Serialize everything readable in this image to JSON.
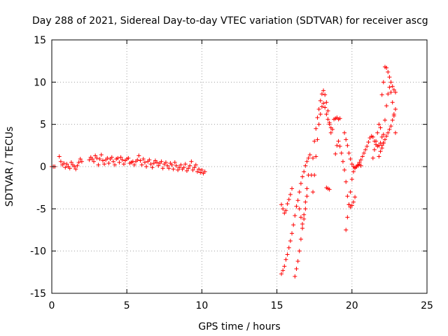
{
  "chart_data": {
    "type": "scatter",
    "title": "Day 288 of 2021, Sidereal Day-to-day VTEC variation (SDTVAR) for receiver ascg",
    "xlabel": "GPS time / hours",
    "ylabel": "SDTVAR / TECUs",
    "xlim": [
      0,
      25
    ],
    "ylim": [
      -15,
      15
    ],
    "xticks": [
      0,
      5,
      10,
      15,
      20,
      25
    ],
    "yticks": [
      -15,
      -10,
      -5,
      0,
      5,
      10,
      15
    ],
    "grid": true,
    "marker": "+",
    "series_color": "#ff0000",
    "series": [
      {
        "name": "SDTVAR",
        "x": [
          0.0,
          0.1,
          0.2,
          0.5,
          0.6,
          0.7,
          0.8,
          0.9,
          1.0,
          1.1,
          1.2,
          1.3,
          1.4,
          1.5,
          1.6,
          1.7,
          1.8,
          1.9,
          2.0,
          2.5,
          2.6,
          2.7,
          2.8,
          2.9,
          3.0,
          3.1,
          3.2,
          3.3,
          3.4,
          3.5,
          3.6,
          3.7,
          3.8,
          3.9,
          4.0,
          4.1,
          4.2,
          4.3,
          4.4,
          4.5,
          4.6,
          4.7,
          4.8,
          4.9,
          5.0,
          5.1,
          5.2,
          5.3,
          5.4,
          5.5,
          5.6,
          5.7,
          5.8,
          5.9,
          6.0,
          6.1,
          6.2,
          6.3,
          6.4,
          6.5,
          6.6,
          6.7,
          6.8,
          6.9,
          7.0,
          7.1,
          7.2,
          7.3,
          7.4,
          7.5,
          7.6,
          7.7,
          7.8,
          7.9,
          8.0,
          8.1,
          8.2,
          8.3,
          8.4,
          8.5,
          8.6,
          8.7,
          8.8,
          8.9,
          9.0,
          9.1,
          9.2,
          9.3,
          9.4,
          9.5,
          9.6,
          9.7,
          9.8,
          9.9,
          10.0,
          10.1,
          10.2,
          15.3,
          15.4,
          15.5,
          15.6,
          15.7,
          15.8,
          15.9,
          16.0,
          16.1,
          16.2,
          16.3,
          15.3,
          15.4,
          15.5,
          15.6,
          15.7,
          15.8,
          15.9,
          16.0,
          16.2,
          16.3,
          16.4,
          16.5,
          16.6,
          16.7,
          16.8,
          16.9,
          17.0,
          17.1,
          16.5,
          16.6,
          16.7,
          16.8,
          16.9,
          17.0,
          17.1,
          17.2,
          16.4,
          16.5,
          16.6,
          16.7,
          16.8,
          16.9,
          17.0,
          17.3,
          17.4,
          17.5,
          17.6,
          17.7,
          17.8,
          17.9,
          18.0,
          18.1,
          18.2,
          18.3,
          18.4,
          18.5,
          18.6,
          17.4,
          17.5,
          17.6,
          17.7,
          17.8,
          17.9,
          18.0,
          18.1,
          18.2,
          18.3,
          18.4,
          18.5,
          18.6,
          18.7,
          18.3,
          18.4,
          18.5,
          18.8,
          18.9,
          19.0,
          19.1,
          19.2,
          18.9,
          19.0,
          19.1,
          19.2,
          19.3,
          19.4,
          19.5,
          19.6,
          19.7,
          19.8,
          19.9,
          20.0,
          20.1,
          20.2,
          19.6,
          19.7,
          19.8,
          19.9,
          20.0,
          20.1,
          20.2,
          20.3,
          20.4,
          19.5,
          19.6,
          19.7,
          19.8,
          19.9,
          20.0,
          20.1,
          20.2,
          20.3,
          20.4,
          20.5,
          20.6,
          20.3,
          20.4,
          20.5,
          20.6,
          20.7,
          20.8,
          20.9,
          21.0,
          21.1,
          21.2,
          21.3,
          21.4,
          21.5,
          21.6,
          21.7,
          21.8,
          21.9,
          21.4,
          21.5,
          21.6,
          21.7,
          21.8,
          21.9,
          22.0,
          22.1,
          22.0,
          22.1,
          22.2,
          22.3,
          22.4,
          22.5,
          22.6,
          22.7,
          22.8,
          22.9,
          22.0,
          22.1,
          22.2,
          22.3,
          22.4,
          22.5,
          22.6,
          22.7,
          22.8,
          22.9,
          21.8,
          21.9,
          22.0,
          22.1,
          22.2,
          22.3,
          22.4,
          22.5,
          22.6,
          22.7,
          22.8,
          22.9
        ],
        "y": [
          0.0,
          0.0,
          0.0,
          1.2,
          0.6,
          0.2,
          0.4,
          -0.1,
          0.3,
          0.0,
          -0.2,
          0.5,
          0.2,
          0.0,
          -0.3,
          0.1,
          0.5,
          0.9,
          0.6,
          0.8,
          1.1,
          0.9,
          0.6,
          1.3,
          1.0,
          0.2,
          0.9,
          1.4,
          0.7,
          0.3,
          0.8,
          1.0,
          0.4,
          0.9,
          1.1,
          0.6,
          0.2,
          0.9,
          1.0,
          0.5,
          1.1,
          0.8,
          0.3,
          0.7,
          0.9,
          1.0,
          0.4,
          0.5,
          0.6,
          0.2,
          0.6,
          0.8,
          1.3,
          0.7,
          0.2,
          0.9,
          0.5,
          0.0,
          0.6,
          0.8,
          0.3,
          -0.1,
          0.4,
          0.7,
          0.5,
          0.1,
          0.4,
          0.6,
          -0.2,
          0.3,
          0.5,
          0.1,
          -0.2,
          0.4,
          0.2,
          -0.3,
          0.5,
          0.1,
          -0.4,
          -0.1,
          0.2,
          -0.3,
          -0.1,
          0.3,
          -0.5,
          -0.2,
          0.1,
          0.6,
          -0.4,
          -0.1,
          0.2,
          -0.6,
          -0.3,
          -0.7,
          -0.4,
          -0.8,
          -0.6,
          -12.7,
          -12.3,
          -11.8,
          -11.0,
          -10.4,
          -9.6,
          -8.8,
          -7.9,
          -6.9,
          -5.8,
          -4.7,
          -4.5,
          -5.0,
          -5.5,
          -5.2,
          -4.4,
          -3.9,
          -3.3,
          -2.6,
          -13.0,
          -12.1,
          -11.2,
          -10.0,
          -8.6,
          -7.3,
          -5.7,
          -4.2,
          -2.6,
          -1.0,
          -3.0,
          -2.0,
          -1.2,
          -0.6,
          0.1,
          0.6,
          1.0,
          1.4,
          -4.0,
          -5.0,
          -6.0,
          -6.8,
          -6.2,
          -5.0,
          -3.5,
          -1.0,
          1.0,
          3.0,
          4.5,
          5.8,
          6.8,
          7.8,
          8.6,
          9.0,
          8.5,
          7.6,
          6.6,
          5.2,
          4.0,
          -3.0,
          -1.0,
          1.2,
          3.2,
          5.0,
          6.2,
          7.1,
          7.5,
          7.0,
          6.2,
          5.6,
          5.0,
          4.6,
          4.4,
          -2.5,
          -2.6,
          -2.7,
          5.6,
          5.7,
          5.8,
          5.6,
          5.7,
          1.5,
          2.5,
          3.0,
          2.4,
          1.6,
          0.6,
          -0.4,
          -1.8,
          -3.5,
          -4.5,
          -4.8,
          -4.6,
          -4.2,
          -3.6,
          -7.5,
          -6.0,
          -4.5,
          -3.0,
          -1.5,
          -0.6,
          -0.2,
          0.0,
          0.1,
          4.0,
          3.2,
          2.5,
          1.6,
          0.9,
          0.3,
          0.0,
          -0.1,
          0.0,
          0.2,
          0.3,
          0.1,
          0.0,
          0.2,
          0.5,
          0.8,
          1.2,
          1.6,
          2.0,
          2.4,
          2.9,
          3.4,
          3.6,
          3.5,
          3.0,
          2.6,
          2.4,
          2.5,
          2.8,
          1.0,
          2.0,
          3.0,
          4.0,
          5.0,
          4.6,
          3.5,
          2.8,
          8.5,
          10.0,
          11.8,
          11.7,
          11.2,
          10.6,
          10.0,
          9.5,
          9.1,
          8.8,
          2.5,
          3.8,
          5.5,
          7.2,
          8.6,
          9.4,
          8.8,
          7.6,
          6.0,
          4.0,
          1.2,
          1.8,
          2.2,
          2.8,
          3.2,
          3.6,
          4.0,
          4.4,
          4.8,
          5.5,
          6.2,
          6.8
        ]
      }
    ]
  }
}
